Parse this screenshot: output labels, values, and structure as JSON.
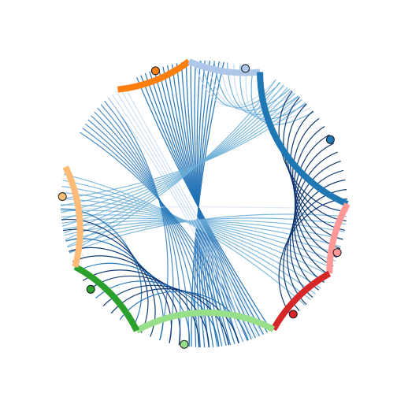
{
  "diagram": {
    "type": "circular-edge-bundling",
    "segments": [
      {
        "id": "orange",
        "color": "#ff7f0e"
      },
      {
        "id": "light-blue",
        "color": "#aec7e8"
      },
      {
        "id": "blue",
        "color": "#1f77b4"
      },
      {
        "id": "pink",
        "color": "#ff9896"
      },
      {
        "id": "red",
        "color": "#d62728"
      },
      {
        "id": "light-green",
        "color": "#98df8a"
      },
      {
        "id": "green",
        "color": "#2ca02c"
      },
      {
        "id": "light-orange",
        "color": "#ffbb78"
      }
    ],
    "edge_colors": {
      "dark": "#08306b",
      "mid": "#2171b5",
      "light": "#6baed6",
      "pale": "#c6dbef"
    },
    "markers": [
      "orange",
      "light-blue",
      "blue",
      "pink",
      "red",
      "light-green",
      "green",
      "light-orange"
    ]
  }
}
